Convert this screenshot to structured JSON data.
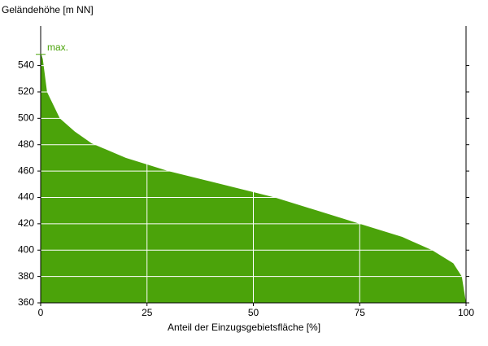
{
  "chart_data": {
    "type": "area",
    "title": "Geländehöhe [m NN]",
    "x_label": "Anteil der Einzugsgebietsfläche [%]",
    "x": [
      0,
      0.5,
      1.5,
      4.5,
      8,
      12,
      20,
      30,
      40,
      50,
      55,
      65,
      75,
      85,
      92,
      97,
      99,
      100
    ],
    "values": [
      550,
      545,
      520,
      500,
      490,
      481,
      470,
      460,
      452,
      444,
      440,
      430,
      420,
      410,
      400,
      390,
      380,
      360
    ],
    "color": "#4ba30a",
    "annotation": {
      "text": "max.",
      "y": 551
    },
    "xlim": [
      0,
      100
    ],
    "xticks": [
      0,
      25,
      50,
      75,
      100
    ],
    "ylim": [
      360,
      570
    ],
    "yticks": [
      360,
      380,
      400,
      420,
      440,
      460,
      480,
      500,
      520,
      540
    ],
    "grid": true
  }
}
